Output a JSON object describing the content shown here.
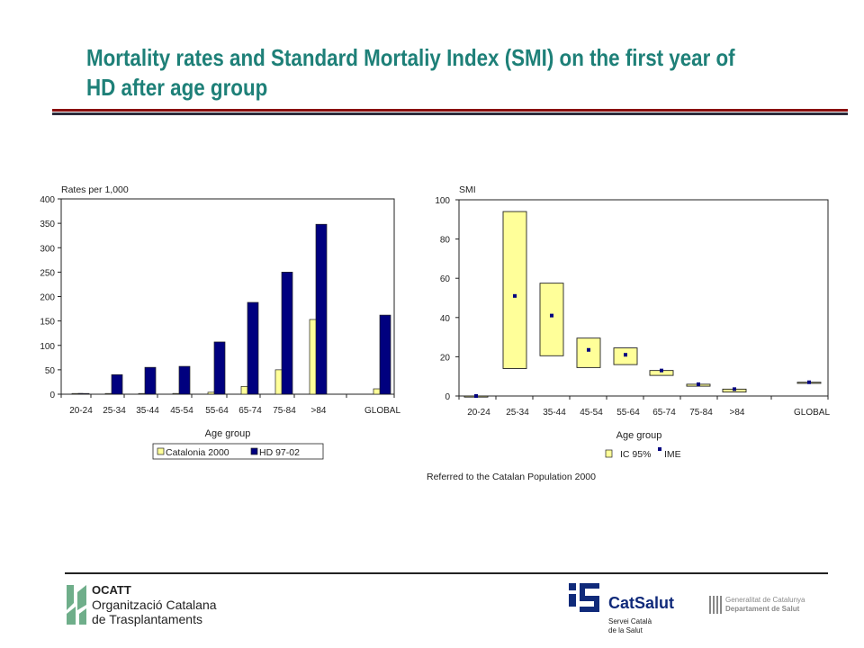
{
  "slide": {
    "title": "Mortality rates and Standard Mortaliy Index (SMI) on the first year of HD after age group",
    "footnote": "Referred to the Catalan Population 2000"
  },
  "colors": {
    "title": "#1e8078",
    "catalonia": "#ffff99",
    "hd": "#00007f"
  },
  "chart_data": [
    {
      "type": "bar",
      "ylabel": "Rates per 1,000",
      "xlabel": "Age group",
      "ylim": [
        0,
        400
      ],
      "yticks": [
        0,
        50,
        100,
        150,
        200,
        250,
        300,
        350,
        400
      ],
      "grid": false,
      "legend_placement": "bottom",
      "categories": [
        "20-24",
        "25-34",
        "35-44",
        "45-54",
        "55-64",
        "65-74",
        "75-84",
        ">84",
        "GLOBAL"
      ],
      "series": [
        {
          "name": "Catalonia 2000",
          "color": "#ffff99",
          "values": [
            0.1,
            0.2,
            0.5,
            1.5,
            4,
            16,
            50,
            153,
            11
          ]
        },
        {
          "name": "HD 97-02",
          "color": "#00007f",
          "values": [
            0,
            40,
            55,
            57,
            107,
            188,
            250,
            348,
            162
          ]
        }
      ]
    },
    {
      "type": "scatter",
      "ylabel": "SMI",
      "xlabel": "Age group",
      "ylim": [
        0,
        100
      ],
      "yticks": [
        0,
        20,
        40,
        60,
        80,
        100
      ],
      "grid": false,
      "legend_placement": "bottom",
      "categories": [
        "20-24",
        "25-34",
        "35-44",
        "45-54",
        "55-64",
        "65-74",
        "75-84",
        ">84",
        "GLOBAL"
      ],
      "legend": {
        "ci_label": "IC 95%",
        "point_label": "IME"
      },
      "smi": [
        0,
        51,
        41,
        23.5,
        21,
        13,
        6,
        3.5,
        7
      ],
      "ci_low": [
        0,
        14,
        20.5,
        14.5,
        16,
        10.5,
        5,
        2,
        7
      ],
      "ci_high": [
        0,
        94,
        57.5,
        29.5,
        24.5,
        13,
        6,
        3.5,
        7
      ]
    }
  ],
  "logos": {
    "ocatt": {
      "abbr": "OCATT",
      "line1": "Organització Catalana",
      "line2": "de Trasplantaments"
    },
    "catsalut": {
      "name": "CatSalut",
      "line1": "Servei Català",
      "line2": "de la Salut"
    },
    "gencat": {
      "line1": "Generalitat de Catalunya",
      "line2": "Departament de Salut"
    }
  }
}
